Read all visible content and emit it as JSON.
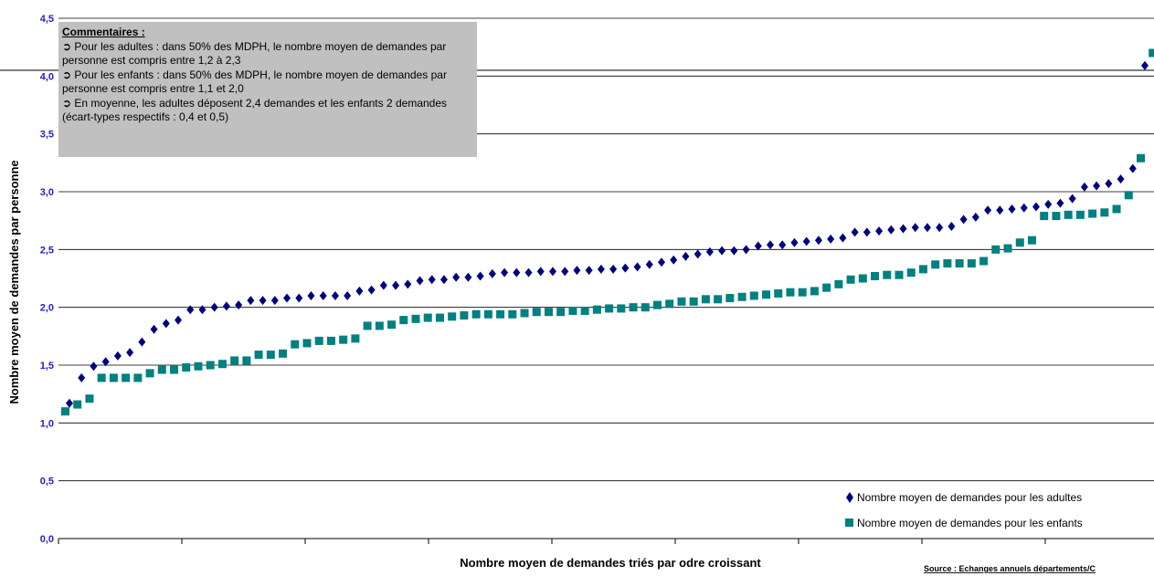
{
  "chart_data": {
    "type": "scatter",
    "xlabel": "Nombre moyen de demandes triés par odre croissant",
    "ylabel": "Nombre moyen de demandes par personne",
    "ylim": [
      0,
      4.5
    ],
    "yticks": [
      "0,0",
      "0,5",
      "1,0",
      "1,5",
      "2,0",
      "2,5",
      "3,0",
      "3,5",
      "4,0",
      "4,5"
    ],
    "grid": true,
    "legend_position": "bottom-right",
    "series": [
      {
        "name": "Nombre moyen de demandes pour les adultes",
        "marker": "diamond",
        "color": "#000080",
        "values": [
          1.17,
          1.39,
          1.49,
          1.53,
          1.58,
          1.61,
          1.7,
          1.81,
          1.86,
          1.89,
          1.98,
          1.98,
          2.0,
          2.01,
          2.02,
          2.06,
          2.06,
          2.06,
          2.08,
          2.08,
          2.1,
          2.1,
          2.1,
          2.1,
          2.14,
          2.15,
          2.19,
          2.19,
          2.2,
          2.23,
          2.24,
          2.24,
          2.26,
          2.26,
          2.27,
          2.29,
          2.3,
          2.3,
          2.3,
          2.31,
          2.31,
          2.31,
          2.32,
          2.32,
          2.33,
          2.33,
          2.34,
          2.35,
          2.37,
          2.39,
          2.41,
          2.44,
          2.46,
          2.48,
          2.49,
          2.49,
          2.5,
          2.53,
          2.54,
          2.54,
          2.56,
          2.57,
          2.58,
          2.59,
          2.6,
          2.65,
          2.65,
          2.66,
          2.67,
          2.68,
          2.69,
          2.69,
          2.69,
          2.7,
          2.76,
          2.78,
          2.84,
          2.84,
          2.85,
          2.86,
          2.87,
          2.89,
          2.9,
          2.94,
          3.04,
          3.05,
          3.07,
          3.11,
          3.2,
          4.09
        ]
      },
      {
        "name": "Nombre moyen de demandes pour les enfants",
        "marker": "square",
        "color": "#008080",
        "values": [
          1.1,
          1.16,
          1.21,
          1.39,
          1.39,
          1.39,
          1.39,
          1.43,
          1.46,
          1.46,
          1.48,
          1.49,
          1.5,
          1.51,
          1.54,
          1.54,
          1.59,
          1.59,
          1.6,
          1.68,
          1.69,
          1.71,
          1.71,
          1.72,
          1.73,
          1.84,
          1.84,
          1.85,
          1.89,
          1.9,
          1.91,
          1.91,
          1.92,
          1.93,
          1.94,
          1.94,
          1.94,
          1.94,
          1.95,
          1.96,
          1.96,
          1.96,
          1.97,
          1.97,
          1.98,
          1.99,
          1.99,
          2.0,
          2.0,
          2.02,
          2.03,
          2.05,
          2.05,
          2.07,
          2.07,
          2.08,
          2.09,
          2.1,
          2.11,
          2.12,
          2.13,
          2.13,
          2.14,
          2.17,
          2.2,
          2.24,
          2.25,
          2.27,
          2.28,
          2.28,
          2.3,
          2.33,
          2.37,
          2.38,
          2.38,
          2.38,
          2.4,
          2.5,
          2.51,
          2.56,
          2.58,
          2.79,
          2.79,
          2.8,
          2.8,
          2.81,
          2.82,
          2.85,
          2.97,
          3.29,
          4.2
        ]
      }
    ]
  },
  "comments": {
    "title": "Commentaires :",
    "bullet": "➲",
    "lines": [
      "Pour les adultes : dans 50% des MDPH, le nombre moyen de demandes par personne est compris entre 1,2 à 2,3",
      "Pour les enfants : dans 50% des MDPH, le nombre moyen de demandes par personne est compris entre 1,1 et 2,0",
      "En moyenne, les adultes déposent 2,4 demandes et les enfants 2 demandes (écart-types respectifs : 0,4 et 0,5)"
    ]
  },
  "source": "Source : Echanges annuels départements/C"
}
